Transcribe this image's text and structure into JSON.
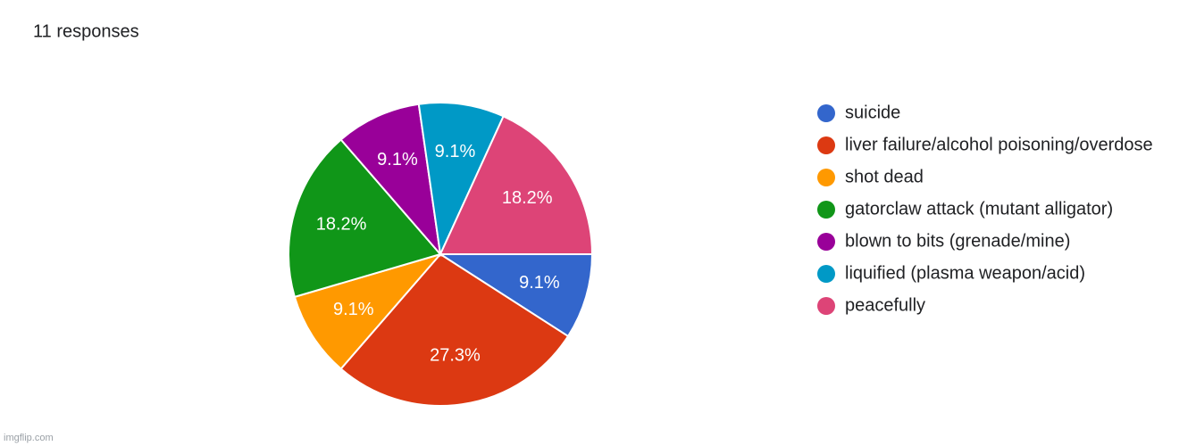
{
  "chart_data": {
    "type": "pie",
    "title": "11 responses",
    "categories": [
      "suicide",
      "liver failure/alcohol poisoning/overdose",
      "shot dead",
      "gatorclaw attack (mutant alligator)",
      "blown to bits (grenade/mine)",
      "liquified (plasma weapon/acid)",
      "peacefully"
    ],
    "values": [
      9.1,
      27.3,
      9.1,
      18.2,
      9.1,
      9.1,
      18.2
    ],
    "value_labels": [
      "9.1%",
      "27.3%",
      "9.1%",
      "18.2%",
      "9.1%",
      "9.1%",
      "18.2%"
    ],
    "colors": [
      "#3366cc",
      "#dc3912",
      "#ff9900",
      "#109618",
      "#990099",
      "#0099c6",
      "#dd4477"
    ],
    "legend": "right"
  },
  "watermark": "imgflip.com"
}
